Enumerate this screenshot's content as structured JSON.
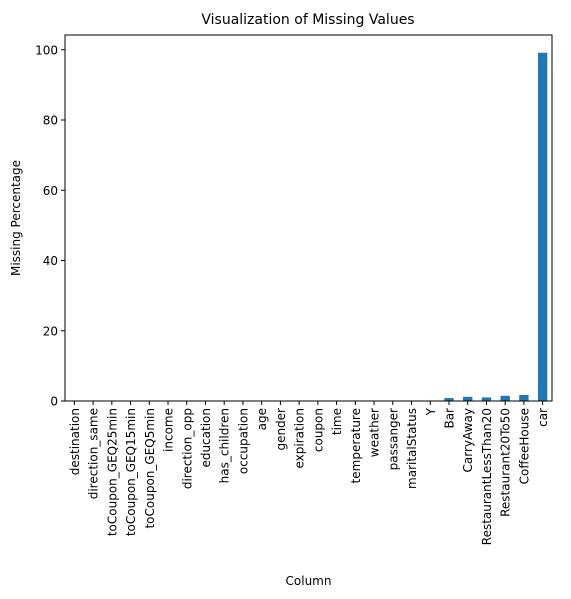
{
  "chart_data": {
    "type": "bar",
    "title": "Visualization of Missing Values",
    "xlabel": "Column",
    "ylabel": "Missing Percentage",
    "ylim": [
      0,
      104.2
    ],
    "yticks": [
      0,
      20,
      40,
      60,
      80,
      100
    ],
    "grid": false,
    "bar_color": "#1f77b4",
    "categories": [
      "destination",
      "direction_same",
      "toCoupon_GEQ25min",
      "toCoupon_GEQ15min",
      "toCoupon_GEQ5min",
      "income",
      "direction_opp",
      "education",
      "has_children",
      "occupation",
      "age",
      "gender",
      "expiration",
      "coupon",
      "time",
      "temperature",
      "weather",
      "passanger",
      "maritalStatus",
      "Y",
      "Bar",
      "CarryAway",
      "RestaurantLessThan20",
      "Restaurant20To50",
      "CoffeeHouse",
      "car"
    ],
    "values": [
      0,
      0,
      0,
      0,
      0,
      0,
      0,
      0,
      0,
      0,
      0,
      0,
      0,
      0,
      0,
      0,
      0,
      0,
      0,
      0,
      0.84,
      1.19,
      1.02,
      1.49,
      1.71,
      99.15
    ]
  }
}
